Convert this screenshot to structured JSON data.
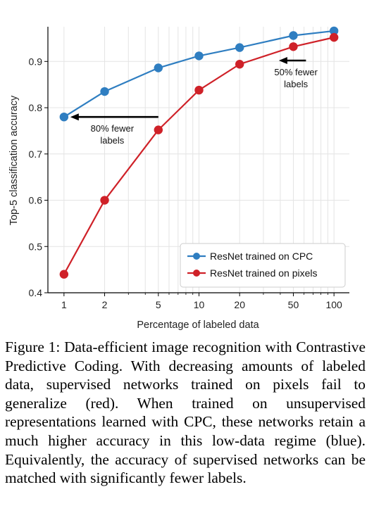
{
  "chart_data": {
    "type": "line",
    "xlabel": "Percentage of labeled data",
    "ylabel": "Top-5 classification accuracy",
    "x_scale": "log",
    "x_ticks": [
      1,
      2,
      5,
      10,
      20,
      50,
      100
    ],
    "x_tick_labels": [
      "1",
      "2",
      "5",
      "10",
      "20",
      "50",
      "100"
    ],
    "y_ticks": [
      0.4,
      0.5,
      0.6,
      0.7,
      0.8,
      0.9
    ],
    "y_tick_labels": [
      "0.4",
      "0.5",
      "0.6",
      "0.7",
      "0.8",
      "0.9"
    ],
    "xlim": [
      0.76,
      130
    ],
    "ylim": [
      0.4,
      0.975
    ],
    "grid": true,
    "legend_position": "bottom-right",
    "series": [
      {
        "name": "ResNet trained on CPC",
        "color": "#2f7ec1",
        "x": [
          1,
          2,
          5,
          10,
          20,
          50,
          100
        ],
        "y": [
          0.78,
          0.835,
          0.886,
          0.912,
          0.93,
          0.956,
          0.966
        ]
      },
      {
        "name": "ResNet trained on pixels",
        "color": "#cf2128",
        "x": [
          1,
          2,
          5,
          10,
          20,
          50,
          100
        ],
        "y": [
          0.44,
          0.6,
          0.752,
          0.838,
          0.894,
          0.932,
          0.952
        ]
      }
    ],
    "annotations": [
      {
        "text_lines": [
          "80% fewer",
          "labels"
        ],
        "arrow_from_x": 5,
        "arrow_to_x": 1,
        "arrow_y": 0.78
      },
      {
        "text_lines": [
          "50% fewer",
          "labels"
        ],
        "arrow_from_x": 62,
        "arrow_to_x": 20,
        "arrow_y": 0.902
      }
    ]
  },
  "caption": "Figure 1: Data-efficient image recognition with Contrastive Predictive Coding.  With decreasing amounts of labeled data, supervised networks trained on pixels fail to generalize (red).  When trained on unsupervised representations learned with CPC, these networks retain a much higher accuracy in this low-data regime (blue).  Equivalently, the accuracy of supervised networks can be matched with significantly fewer labels."
}
